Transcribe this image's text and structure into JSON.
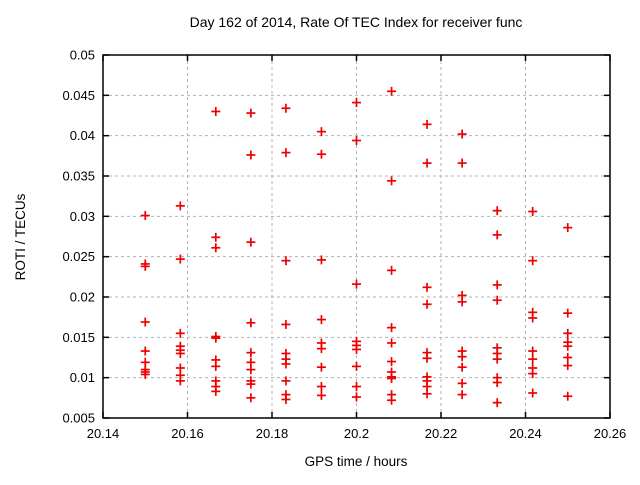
{
  "chart_data": {
    "type": "scatter",
    "title": "Day 162 of 2014, Rate Of TEC Index for receiver func",
    "xlabel": "GPS time / hours",
    "ylabel": "ROTI / TECUs",
    "xlim": [
      20.14,
      20.26
    ],
    "ylim": [
      0.005,
      0.05
    ],
    "x_tick_labels": [
      "20.14",
      "20.16",
      "20.18",
      "20.2",
      "20.22",
      "20.24",
      "20.26"
    ],
    "y_tick_labels": [
      "0.005",
      "0.01",
      "0.015",
      "0.02",
      "0.025",
      "0.03",
      "0.035",
      "0.04",
      "0.045",
      "0.05"
    ],
    "grid": true,
    "grid_style": "dashed",
    "legend_position": "none",
    "marker_shape": "plus",
    "marker_color": "#ee0000",
    "grid_color": "#b3b3b3",
    "axis_color": "#000000",
    "series": [
      {
        "name": "ROTI",
        "points": [
          [
            20.15,
            0.0301
          ],
          [
            20.15,
            0.0241
          ],
          [
            20.15,
            0.0238
          ],
          [
            20.15,
            0.0169
          ],
          [
            20.15,
            0.0133
          ],
          [
            20.15,
            0.0119
          ],
          [
            20.15,
            0.011
          ],
          [
            20.15,
            0.0107
          ],
          [
            20.15,
            0.0104
          ],
          [
            20.1583,
            0.0313
          ],
          [
            20.1583,
            0.0247
          ],
          [
            20.1583,
            0.0155
          ],
          [
            20.1583,
            0.0139
          ],
          [
            20.1583,
            0.0134
          ],
          [
            20.1583,
            0.013
          ],
          [
            20.1583,
            0.0112
          ],
          [
            20.1583,
            0.0103
          ],
          [
            20.1583,
            0.0096
          ],
          [
            20.1667,
            0.043
          ],
          [
            20.1667,
            0.0274
          ],
          [
            20.1667,
            0.0261
          ],
          [
            20.1667,
            0.0151
          ],
          [
            20.1667,
            0.0149
          ],
          [
            20.1667,
            0.0122
          ],
          [
            20.1667,
            0.0114
          ],
          [
            20.1667,
            0.0096
          ],
          [
            20.1667,
            0.0089
          ],
          [
            20.1667,
            0.0083
          ],
          [
            20.175,
            0.0428
          ],
          [
            20.175,
            0.0376
          ],
          [
            20.175,
            0.0268
          ],
          [
            20.175,
            0.0168
          ],
          [
            20.175,
            0.0131
          ],
          [
            20.175,
            0.0119
          ],
          [
            20.175,
            0.011
          ],
          [
            20.175,
            0.0096
          ],
          [
            20.175,
            0.0092
          ],
          [
            20.175,
            0.0075
          ],
          [
            20.1833,
            0.0434
          ],
          [
            20.1833,
            0.0379
          ],
          [
            20.1833,
            0.0245
          ],
          [
            20.1833,
            0.0166
          ],
          [
            20.1833,
            0.013
          ],
          [
            20.1833,
            0.0123
          ],
          [
            20.1833,
            0.0117
          ],
          [
            20.1833,
            0.0096
          ],
          [
            20.1833,
            0.0079
          ],
          [
            20.1833,
            0.0073
          ],
          [
            20.1917,
            0.0405
          ],
          [
            20.1917,
            0.0377
          ],
          [
            20.1917,
            0.0246
          ],
          [
            20.1917,
            0.0172
          ],
          [
            20.1917,
            0.0143
          ],
          [
            20.1917,
            0.0136
          ],
          [
            20.1917,
            0.0113
          ],
          [
            20.1917,
            0.0089
          ],
          [
            20.1917,
            0.0078
          ],
          [
            20.2,
            0.0441
          ],
          [
            20.2,
            0.0394
          ],
          [
            20.2,
            0.0216
          ],
          [
            20.2,
            0.0145
          ],
          [
            20.2,
            0.014
          ],
          [
            20.2,
            0.0135
          ],
          [
            20.2,
            0.0114
          ],
          [
            20.2,
            0.0089
          ],
          [
            20.2,
            0.0076
          ],
          [
            20.2083,
            0.0455
          ],
          [
            20.2083,
            0.0344
          ],
          [
            20.2083,
            0.0233
          ],
          [
            20.2083,
            0.0162
          ],
          [
            20.2083,
            0.0143
          ],
          [
            20.2083,
            0.012
          ],
          [
            20.2083,
            0.0107
          ],
          [
            20.2083,
            0.0101
          ],
          [
            20.2083,
            0.0099
          ],
          [
            20.2083,
            0.0079
          ],
          [
            20.2083,
            0.0072
          ],
          [
            20.2167,
            0.0414
          ],
          [
            20.2167,
            0.0366
          ],
          [
            20.2167,
            0.0212
          ],
          [
            20.2167,
            0.0191
          ],
          [
            20.2167,
            0.0131
          ],
          [
            20.2167,
            0.0124
          ],
          [
            20.2167,
            0.0101
          ],
          [
            20.2167,
            0.0096
          ],
          [
            20.2167,
            0.0089
          ],
          [
            20.2167,
            0.008
          ],
          [
            20.225,
            0.0402
          ],
          [
            20.225,
            0.0366
          ],
          [
            20.225,
            0.0202
          ],
          [
            20.225,
            0.0194
          ],
          [
            20.225,
            0.0133
          ],
          [
            20.225,
            0.0126
          ],
          [
            20.225,
            0.0113
          ],
          [
            20.225,
            0.0093
          ],
          [
            20.225,
            0.0079
          ],
          [
            20.2333,
            0.0307
          ],
          [
            20.2333,
            0.0277
          ],
          [
            20.2333,
            0.0215
          ],
          [
            20.2333,
            0.0196
          ],
          [
            20.2333,
            0.0137
          ],
          [
            20.2333,
            0.013
          ],
          [
            20.2333,
            0.0123
          ],
          [
            20.2333,
            0.01
          ],
          [
            20.2333,
            0.0094
          ],
          [
            20.2333,
            0.0069
          ],
          [
            20.2417,
            0.0306
          ],
          [
            20.2417,
            0.0245
          ],
          [
            20.2417,
            0.0181
          ],
          [
            20.2417,
            0.0174
          ],
          [
            20.2417,
            0.0133
          ],
          [
            20.2417,
            0.0123
          ],
          [
            20.2417,
            0.0112
          ],
          [
            20.2417,
            0.0105
          ],
          [
            20.2417,
            0.0081
          ],
          [
            20.25,
            0.0286
          ],
          [
            20.25,
            0.018
          ],
          [
            20.25,
            0.0155
          ],
          [
            20.25,
            0.0144
          ],
          [
            20.25,
            0.0139
          ],
          [
            20.25,
            0.0125
          ],
          [
            20.25,
            0.0115
          ],
          [
            20.25,
            0.0077
          ]
        ]
      }
    ]
  }
}
